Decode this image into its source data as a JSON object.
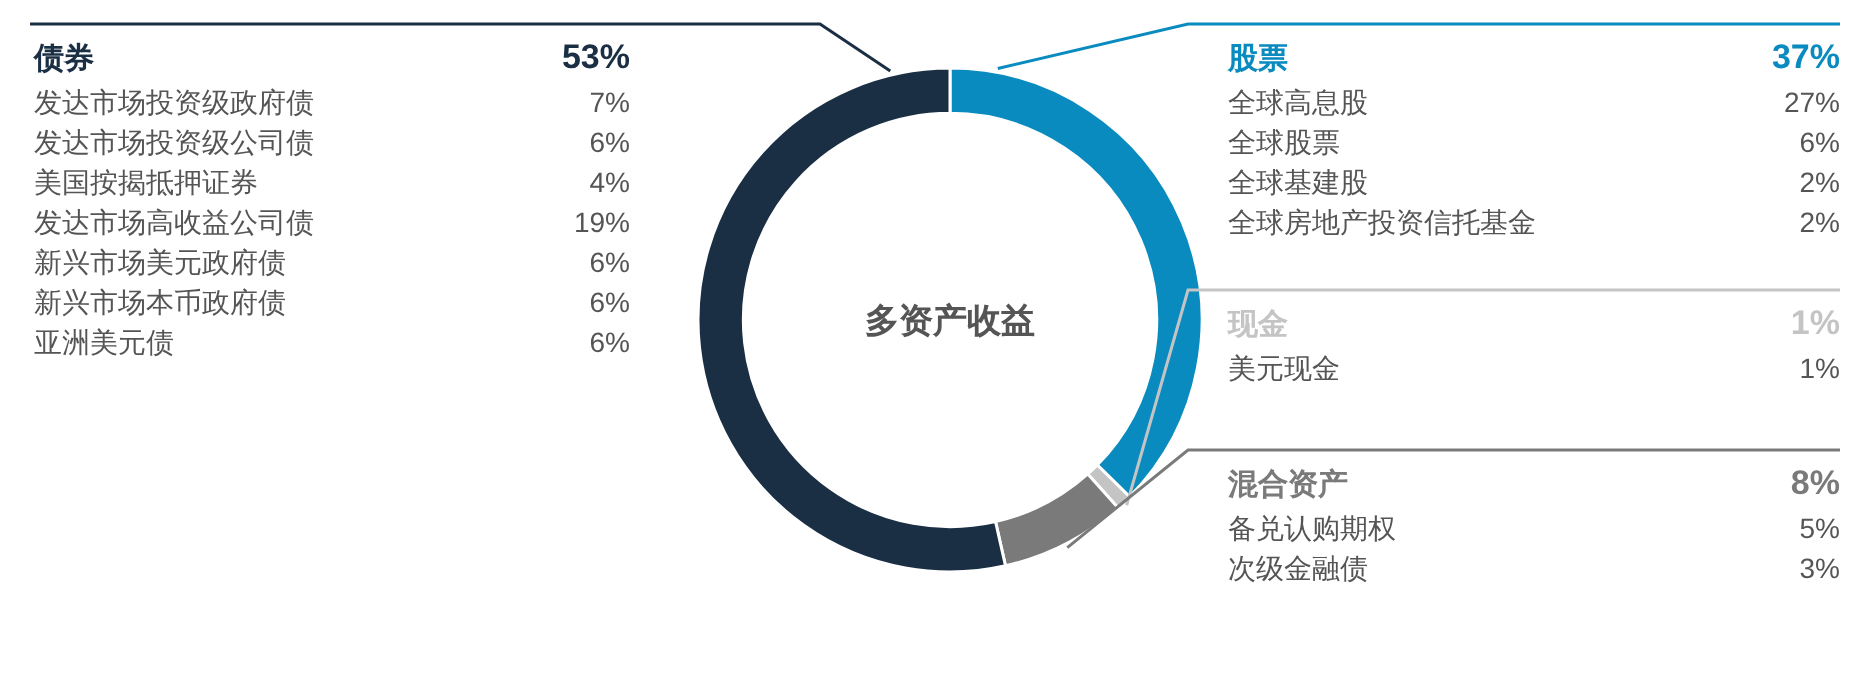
{
  "chart_data": {
    "type": "donut",
    "title": "多资产收益",
    "categories": [
      "股票",
      "现金",
      "混合资产",
      "债券"
    ],
    "values": [
      37,
      1,
      8,
      53
    ],
    "value_labels": [
      "37%",
      "1%",
      "8%",
      "53%"
    ],
    "colors": [
      "#0a8bbf",
      "#c4c4c4",
      "#7a7a7a",
      "#1b2f44"
    ],
    "data_labels": true,
    "annotations": [
      "全球高息股 27%",
      "全球股票 6%",
      "全球基建股 2%",
      "全球房地产投资信托基金 2%",
      "美元现金 1%",
      "备兑认购期权 5%",
      "次级金融债 3%",
      "发达市场投资级政府债 7%",
      "发达市场投资级公司债 6%",
      "美国按揭抵押证券 4%",
      "发达市场高收益公司债 19%",
      "新兴市场美元政府债 6%",
      "新兴市场本币政府债 6%",
      "亚洲美元债 6%"
    ]
  }
}
